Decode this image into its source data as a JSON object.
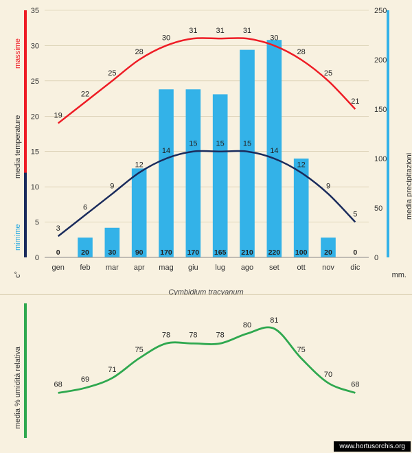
{
  "subtitle": "Cymbidium tracyanum",
  "credit": "www.hortusorchis.org",
  "months": [
    "gen",
    "feb",
    "mar",
    "apr",
    "mag",
    "giu",
    "lug",
    "ago",
    "set",
    "ott",
    "nov",
    "dic"
  ],
  "top_chart": {
    "background": "#f8f1e0",
    "bar_color": "#33b2e8",
    "max_line_color": "#ee1c25",
    "min_line_color": "#1a2b5c",
    "grid_color": "#cfc4a2",
    "axis_color": "#333",
    "temp_axis": {
      "min": 0,
      "max": 35,
      "step": 5
    },
    "precip_axis": {
      "min": 0,
      "max": 250,
      "step": 50,
      "color": "#33b2e8"
    },
    "temps_max": [
      19,
      22,
      25,
      28,
      30,
      31,
      31,
      31,
      30,
      28,
      25,
      21
    ],
    "temps_min": [
      3,
      6,
      9,
      12,
      14,
      15,
      15,
      15,
      14,
      12,
      9,
      5
    ],
    "precip": [
      0,
      20,
      30,
      90,
      170,
      170,
      165,
      210,
      220,
      100,
      20,
      0
    ],
    "left_label_c": "c°",
    "left_label_min": "mimime",
    "left_label_temp": "media  temperature",
    "left_label_max": "massime",
    "right_label": "media  precipitazioni",
    "right_unit": "mm.",
    "min_color": "#2aa9e0",
    "max_color": "#ee1c25",
    "value_label_fontsize": 11
  },
  "bottom_chart": {
    "line_color": "#2fa84f",
    "humidity": [
      68,
      69,
      71,
      75,
      78,
      78,
      78,
      80,
      81,
      75,
      70,
      68
    ],
    "left_label": "media % umidità relativa",
    "y_min": 60,
    "y_max": 85
  }
}
